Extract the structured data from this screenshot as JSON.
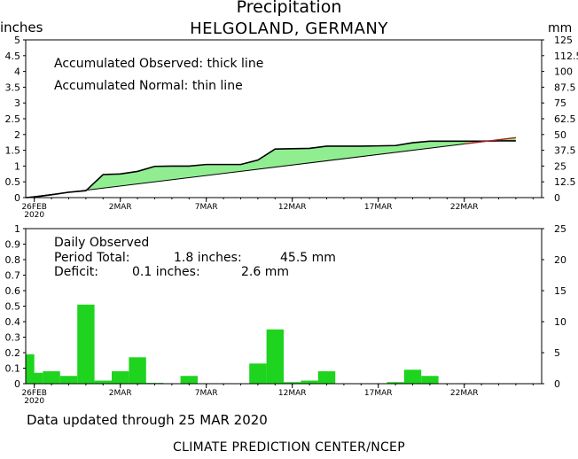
{
  "header": {
    "title": "Precipitation",
    "subtitle": "HELGOLAND, GERMANY",
    "unit_left": "inches",
    "unit_right": "mm"
  },
  "footer": {
    "updated": "Data updated through 25 MAR 2020",
    "credit": "CLIMATE PREDICTION CENTER/NCEP"
  },
  "colors": {
    "fill": "#90ee90",
    "bars": "#1ed41e",
    "observed_line": "#000000",
    "normal_line": "#000000",
    "overlap_line": "#b22222"
  },
  "chart_data": [
    {
      "type": "area",
      "legend": [
        "Accumulated Observed: thick line",
        "Accumulated Normal: thin line"
      ],
      "ylabel_left": "inches",
      "ylabel_right": "mm",
      "ylim": [
        0,
        5
      ],
      "yticks_left": [
        "0",
        "0.5",
        "1",
        "1.5",
        "2",
        "2.5",
        "3",
        "3.5",
        "4",
        "4.5",
        "5"
      ],
      "yticks_right": [
        "0",
        "12.5",
        "25",
        "37.5",
        "50",
        "62.5",
        "75",
        "87.5",
        "100",
        "112.5",
        "125"
      ],
      "xticks": [
        {
          "day": 0,
          "label": "26FEB",
          "sublabel": "2020"
        },
        {
          "day": 5,
          "label": "2MAR"
        },
        {
          "day": 10,
          "label": "7MAR"
        },
        {
          "day": 15,
          "label": "12MAR"
        },
        {
          "day": 20,
          "label": "17MAR"
        },
        {
          "day": 25,
          "label": "22MAR"
        }
      ],
      "x_range": [
        -0.5,
        29.5
      ],
      "series": [
        {
          "name": "Accumulated Observed",
          "x": [
            -0.5,
            0,
            1,
            2,
            3,
            4,
            5,
            6,
            7,
            8,
            9,
            10,
            11,
            12,
            13,
            14,
            15,
            16,
            17,
            18,
            19,
            20,
            21,
            22,
            23,
            24,
            25,
            26,
            27,
            28
          ],
          "values": [
            0,
            0.02,
            0.09,
            0.17,
            0.22,
            0.73,
            0.75,
            0.83,
            0.99,
            1.0,
            1.0,
            1.05,
            1.05,
            1.05,
            1.19,
            1.54,
            1.55,
            1.56,
            1.63,
            1.63,
            1.63,
            1.64,
            1.65,
            1.74,
            1.79,
            1.79,
            1.79,
            1.79,
            1.8,
            1.8
          ]
        },
        {
          "name": "Accumulated Normal",
          "x": [
            -0.5,
            28
          ],
          "values": [
            0,
            1.9
          ]
        }
      ]
    },
    {
      "type": "bar",
      "title": "Daily Observed",
      "stats": {
        "period_label": "Period Total:",
        "period_inches": "1.8 inches:",
        "period_mm": "45.5 mm",
        "deficit_label": "Deficit:",
        "deficit_inches": "0.1 inches:",
        "deficit_mm": "2.6 mm"
      },
      "ylabel_left": "inches",
      "ylabel_right": "mm",
      "ylim": [
        0,
        1
      ],
      "yticks_left": [
        "0",
        "0.1",
        "0.2",
        "0.3",
        "0.4",
        "0.5",
        "0.6",
        "0.7",
        "0.8",
        "0.9",
        "1"
      ],
      "yticks_right": [
        "0",
        "5",
        "10",
        "15",
        "20",
        "25"
      ],
      "xticks": [
        {
          "day": 0,
          "label": "26FEB",
          "sublabel": "2020"
        },
        {
          "day": 5,
          "label": "2MAR"
        },
        {
          "day": 10,
          "label": "7MAR"
        },
        {
          "day": 15,
          "label": "12MAR"
        },
        {
          "day": 20,
          "label": "17MAR"
        },
        {
          "day": 25,
          "label": "22MAR"
        }
      ],
      "x_range": [
        -0.5,
        29.5
      ],
      "x": [
        -0.5,
        0,
        1,
        2,
        3,
        4,
        5,
        6,
        7,
        8,
        9,
        10,
        11,
        12,
        13,
        14,
        15,
        16,
        17,
        18,
        19,
        20,
        21,
        22,
        23,
        24,
        25,
        26,
        27,
        28
      ],
      "values": [
        0.19,
        0.07,
        0.08,
        0.05,
        0.51,
        0.02,
        0.08,
        0.17,
        0.005,
        0,
        0.05,
        0,
        0,
        0,
        0.13,
        0.35,
        0.01,
        0.02,
        0.08,
        0,
        0,
        0,
        0.01,
        0.09,
        0.05,
        0,
        0,
        0,
        0,
        0
      ]
    }
  ]
}
